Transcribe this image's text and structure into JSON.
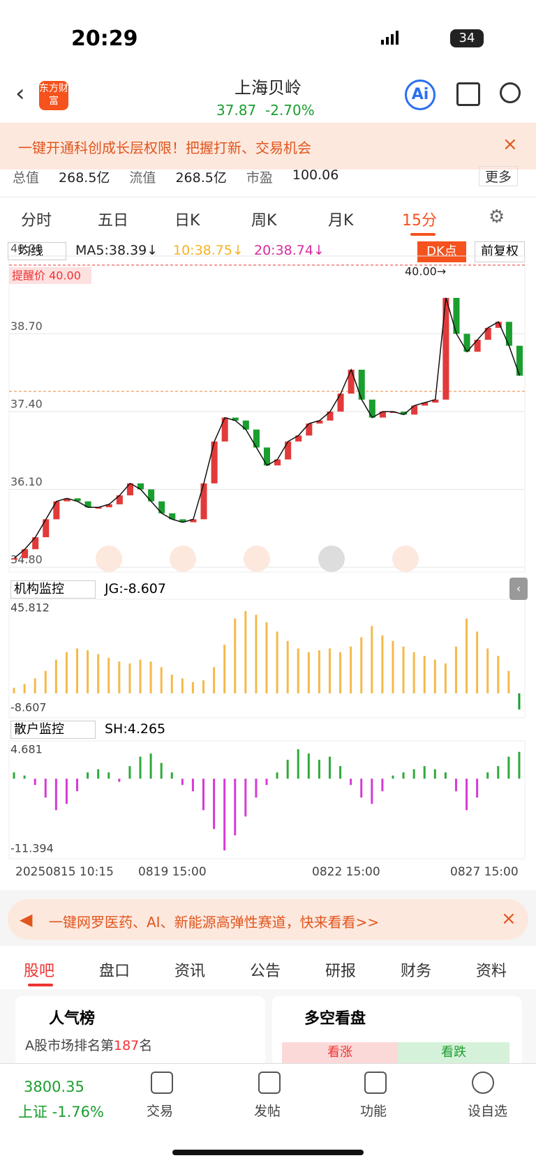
{
  "status": {
    "time": "20:29",
    "battery": "34"
  },
  "header": {
    "title": "上海贝岭",
    "price": "37.87",
    "change": "-2.70%",
    "logo": "东方财富",
    "ai": "Ai"
  },
  "banner": "一键开通科创成长层权限！把握打新、交易机会",
  "stats": {
    "items": [
      "总值",
      "268.5亿",
      "流值",
      "268.5亿",
      "市盈",
      "100.06"
    ],
    "more": "更多"
  },
  "tabs": [
    "分时",
    "五日",
    "日K",
    "周K",
    "月K",
    "15分"
  ],
  "ma": {
    "select": "均线",
    "ma5": "MA5:38.39↓",
    "ma10": "10:38.75↓",
    "ma20": "20:38.74↓",
    "dk": "DK点",
    "fq": "前复权"
  },
  "alert": "提醒价 40.00",
  "high": "40.00→",
  "chart_data": [
    {
      "type": "candlestick",
      "name": "price",
      "ylim": [
        34.8,
        40.0
      ],
      "yticks": [
        {
          "value": 34.8,
          "label": "34.80"
        },
        {
          "value": 36.1,
          "label": "36.10"
        },
        {
          "value": 37.4,
          "label": "37.40"
        },
        {
          "value": 38.7,
          "label": "38.70"
        },
        {
          "value": 40.0,
          "label": "40.00"
        }
      ],
      "values": [
        34.95,
        35.1,
        35.3,
        35.6,
        35.9,
        35.95,
        35.9,
        35.8,
        35.8,
        35.85,
        36.0,
        36.2,
        36.1,
        35.9,
        35.7,
        35.6,
        35.55,
        35.6,
        36.2,
        36.9,
        37.3,
        37.25,
        37.1,
        36.8,
        36.5,
        36.6,
        36.9,
        37.0,
        37.2,
        37.25,
        37.4,
        37.7,
        38.1,
        37.6,
        37.3,
        37.4,
        37.4,
        37.35,
        37.5,
        37.55,
        37.6,
        39.3,
        38.7,
        38.4,
        38.6,
        38.8,
        38.9,
        38.5,
        38.0
      ]
    },
    {
      "type": "bar",
      "name": "机构监控",
      "label": "JG:-8.607",
      "ylim": [
        -8.607,
        45.812
      ],
      "yticks": [
        -8.607,
        45.812
      ],
      "values": [
        3,
        5,
        8,
        12,
        18,
        22,
        24,
        23,
        21,
        19,
        17,
        16,
        18,
        17,
        14,
        10,
        8,
        6,
        7,
        14,
        26,
        40,
        44,
        42,
        38,
        33,
        28,
        24,
        22,
        23,
        24,
        22,
        25,
        30,
        36,
        31,
        28,
        25,
        22,
        20,
        18,
        16,
        25,
        40,
        33,
        24,
        20,
        12,
        -8.607
      ]
    },
    {
      "type": "bar",
      "name": "散户监控",
      "label": "SH:4.265",
      "ylim": [
        -11.394,
        4.681
      ],
      "yticks": [
        -11.394,
        4.681
      ],
      "values": [
        1,
        0.5,
        -1,
        -3,
        -5,
        -4,
        -2,
        1,
        1.5,
        1,
        -0.5,
        2,
        3.5,
        4,
        2.5,
        1,
        -1,
        -2,
        -5,
        -8,
        -11.394,
        -9,
        -6,
        -3,
        -1,
        1,
        3,
        4.681,
        4,
        3,
        3.5,
        2,
        -1,
        -3,
        -4,
        -2,
        0.5,
        1,
        1.5,
        2,
        1.5,
        1,
        -2,
        -5,
        -3,
        1,
        2,
        3.5,
        4.265
      ]
    }
  ],
  "dates": [
    "20250815 10:15",
    "0819 15:00",
    "0822 15:00",
    "0827 15:00"
  ],
  "banner2": "一键网罗医药、AI、新能源高弹性赛道，快来看看>>",
  "subtabs": [
    "股吧",
    "盘口",
    "资讯",
    "公告",
    "研报",
    "财务",
    "资料"
  ],
  "cards": {
    "rank_title": "人气榜",
    "rank_pre": "A股市场排名第",
    "rank_num": "187",
    "rank_post": "名",
    "duokong": "多空看盘",
    "up": "看涨",
    "down": "看跌"
  },
  "nav": {
    "index": "3800.35",
    "index_name": "上证 -1.76%",
    "items": [
      "交易",
      "发帖",
      "功能",
      "设自选"
    ]
  }
}
